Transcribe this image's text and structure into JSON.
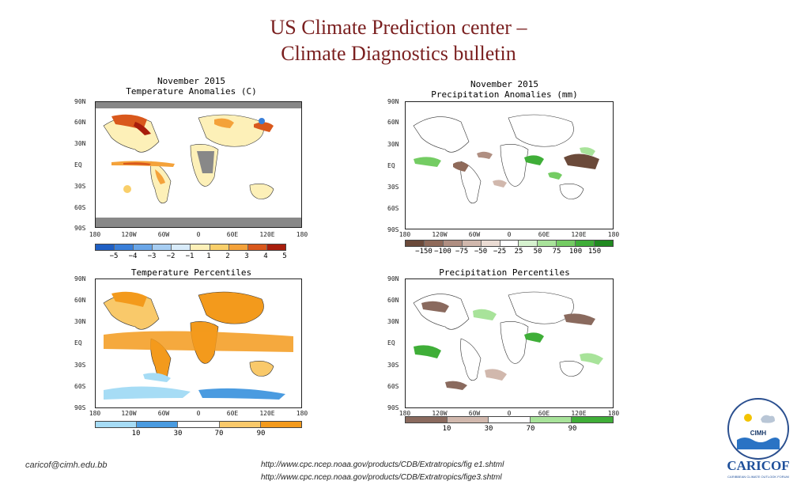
{
  "title": {
    "line1": "US Climate Prediction center –",
    "line2": "Climate Diagnostics bulletin"
  },
  "panels": {
    "temp_anom": {
      "title1": "November 2015",
      "title2": "Temperature Anomalies (C)",
      "colorbar_labels": [
        "−5",
        "−4",
        "−3",
        "−2",
        "−1",
        "1",
        "2",
        "3",
        "4",
        "5"
      ]
    },
    "precip_anom": {
      "title1": "November 2015",
      "title2": "Precipitation Anomalies (mm)",
      "colorbar_labels": [
        "−150",
        "−100",
        "−75",
        "−50",
        "−25",
        "25",
        "50",
        "75",
        "100",
        "150"
      ]
    },
    "temp_pct": {
      "title": "Temperature Percentiles",
      "colorbar_labels": [
        "10",
        "30",
        "70",
        "90"
      ]
    },
    "precip_pct": {
      "title": "Precipitation Percentiles",
      "colorbar_labels": [
        "10",
        "30",
        "70",
        "90"
      ]
    }
  },
  "axes": {
    "lat_labels": [
      "90N",
      "60N",
      "30N",
      "EQ",
      "30S",
      "60S",
      "90S"
    ],
    "lon_labels": [
      "180",
      "120W",
      "60W",
      "0",
      "60E",
      "120E",
      "180"
    ]
  },
  "footer": {
    "email": "caricof@cimh.edu.bb",
    "url1": "http://www.cpc.ncep.noaa.gov/products/CDB/Extratropics/fig e1.shtml",
    "url2": "http://www.cpc.ncep.noaa.gov/products/CDB/Extratropics/fige3.shtml"
  },
  "logo": {
    "org": "CIMH",
    "name": "CARICOF",
    "tagline": "CARIBBEAN CLIMATE OUTLOOK FORUM"
  },
  "colors": {
    "title": "#7a1f1f",
    "temp_scale": [
      "#1f5fc4",
      "#3a7fd9",
      "#6aa6e8",
      "#a6cdf2",
      "#d8ebfa",
      "#fdf0b8",
      "#f9cf6a",
      "#f4a23a",
      "#d9581c",
      "#a81d0c"
    ],
    "precip_scale": [
      "#6b4a3a",
      "#8f6a5a",
      "#b08f82",
      "#d1b8ad",
      "#ebdcd4",
      "#d6f2cf",
      "#a8e39a",
      "#74cc63",
      "#3fae38",
      "#208a20"
    ],
    "pct_temp_scale": [
      "#a6dcf5",
      "#4a9be0",
      "#ffffff",
      "#f9c96a",
      "#f39a1c"
    ],
    "pct_precip_scale": [
      "#8a6a5e",
      "#d1b8ad",
      "#ffffff",
      "#a8e39a",
      "#3fae38"
    ]
  }
}
